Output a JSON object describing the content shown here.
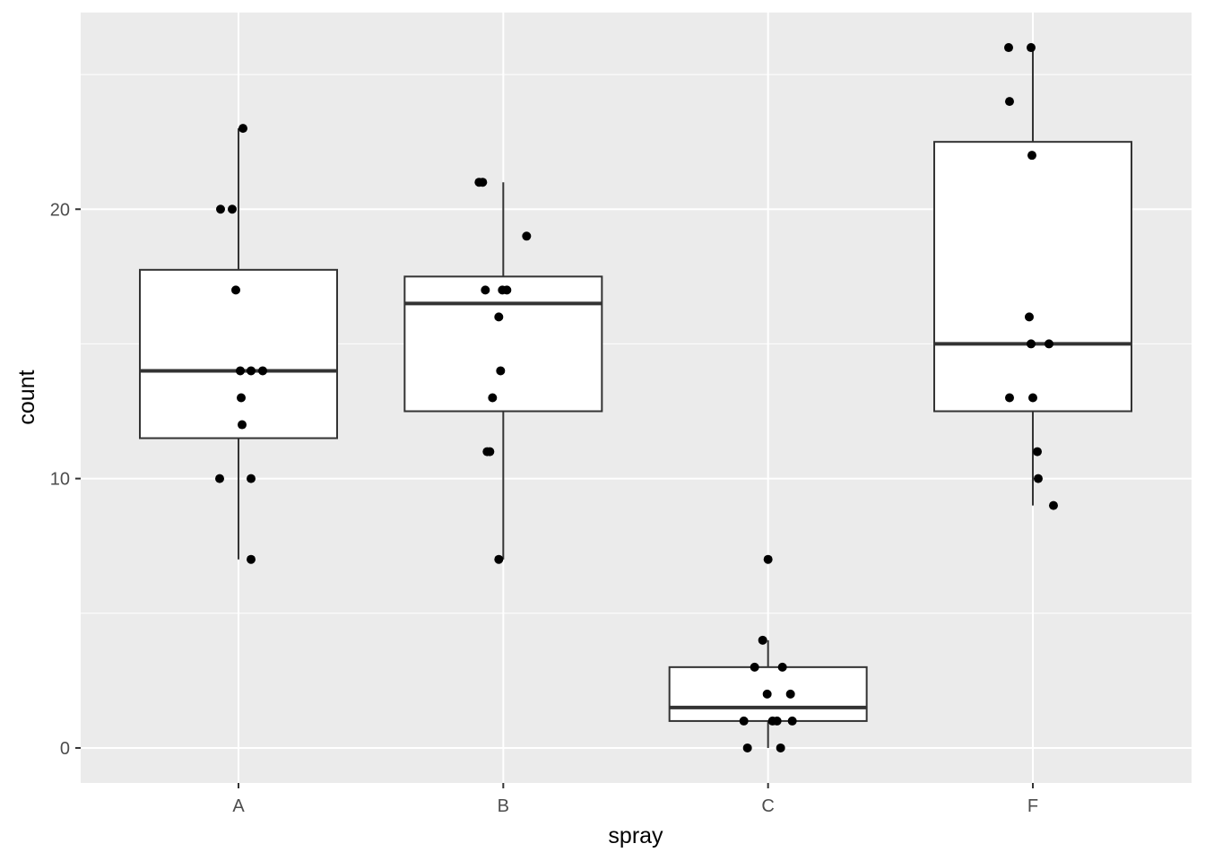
{
  "chart_data": {
    "type": "boxplot",
    "xlabel": "spray",
    "ylabel": "count",
    "categories": [
      "A",
      "B",
      "C",
      "F"
    ],
    "ylim": [
      -1.3,
      27.3
    ],
    "y_ticks": [
      0,
      10,
      20
    ],
    "y_tick_labels": [
      "0",
      "10",
      "20"
    ],
    "grid": true,
    "panel_background": "#EBEBEB",
    "boxes": [
      {
        "category": "A",
        "lower_whisker": 7,
        "q1": 11.5,
        "median": 14,
        "q3": 17.75,
        "upper_whisker": 23
      },
      {
        "category": "B",
        "lower_whisker": 7,
        "q1": 12.5,
        "median": 16.5,
        "q3": 17.5,
        "upper_whisker": 21
      },
      {
        "category": "C",
        "lower_whisker": 0,
        "q1": 1,
        "median": 1.5,
        "q3": 3,
        "upper_whisker": 4
      },
      {
        "category": "F",
        "lower_whisker": 9,
        "q1": 12.5,
        "median": 15,
        "q3": 22.5,
        "upper_whisker": 26
      }
    ],
    "points": [
      {
        "category": "A",
        "values": [
          23,
          20,
          20,
          17,
          14,
          14,
          14,
          13,
          12,
          10,
          10,
          7
        ]
      },
      {
        "category": "B",
        "values": [
          21,
          21,
          19,
          17,
          17,
          17,
          16,
          14,
          13,
          11,
          11,
          7
        ]
      },
      {
        "category": "C",
        "values": [
          7,
          4,
          3,
          3,
          2,
          2,
          1,
          1,
          1,
          1,
          0,
          0
        ]
      },
      {
        "category": "F",
        "values": [
          26,
          26,
          24,
          22,
          16,
          15,
          15,
          13,
          13,
          11,
          10,
          9
        ]
      }
    ]
  }
}
